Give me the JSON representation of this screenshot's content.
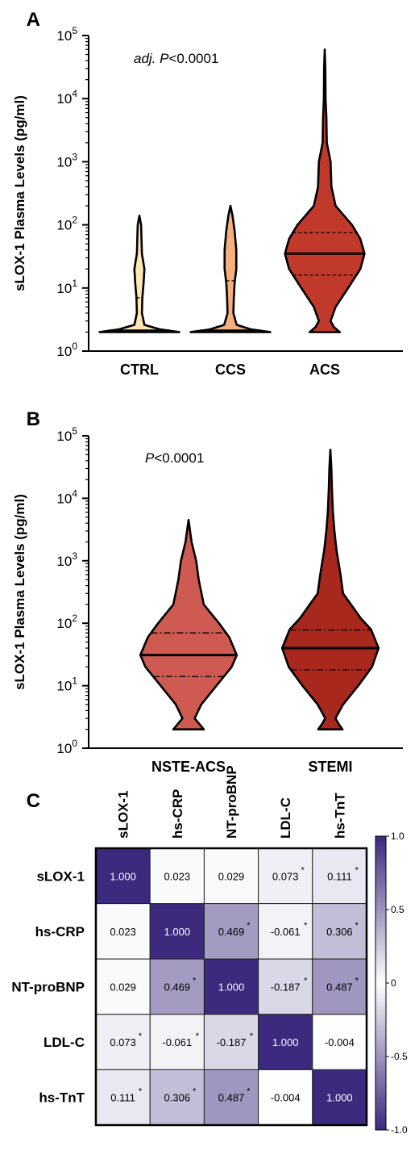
{
  "chart_data": [
    {
      "panel": "A",
      "type": "violin",
      "ylabel": "sLOX-1 Plasma Levels (pg/ml)",
      "yscale": "log",
      "ylim": [
        1,
        100000
      ],
      "yticks": [
        {
          "base": "10",
          "exp": "0",
          "value": 1
        },
        {
          "base": "10",
          "exp": "1",
          "value": 10
        },
        {
          "base": "10",
          "exp": "2",
          "value": 100
        },
        {
          "base": "10",
          "exp": "3",
          "value": 1000
        },
        {
          "base": "10",
          "exp": "4",
          "value": 10000
        },
        {
          "base": "10",
          "exp": "5",
          "value": 100000
        }
      ],
      "annotation": {
        "italic": "adj. P",
        "rest": "<0.0001"
      },
      "categories": [
        "CTRL",
        "CCS",
        "ACS"
      ],
      "series": [
        {
          "category": "CTRL",
          "color": "#fde8b4",
          "min": 2,
          "max": 140,
          "median": 2.1,
          "q1": 2,
          "q3": 7,
          "shape": [
            [
              2,
              0.95
            ],
            [
              2.2,
              0.5
            ],
            [
              2.6,
              0.12
            ],
            [
              4,
              0.06
            ],
            [
              7,
              0.07
            ],
            [
              12,
              0.1
            ],
            [
              20,
              0.12
            ],
            [
              35,
              0.06
            ],
            [
              60,
              0.05
            ],
            [
              100,
              0.04
            ],
            [
              140,
              0
            ]
          ]
        },
        {
          "category": "CCS",
          "color": "#f4b07c",
          "min": 2,
          "max": 200,
          "median": 2.1,
          "q1": 2,
          "q3": 13,
          "shape": [
            [
              2,
              0.95
            ],
            [
              2.2,
              0.5
            ],
            [
              2.6,
              0.15
            ],
            [
              4,
              0.07
            ],
            [
              7,
              0.08
            ],
            [
              12,
              0.1
            ],
            [
              20,
              0.14
            ],
            [
              40,
              0.14
            ],
            [
              80,
              0.1
            ],
            [
              140,
              0.05
            ],
            [
              200,
              0
            ]
          ]
        },
        {
          "category": "ACS",
          "color": "#c0392b",
          "min": 2,
          "max": 60000,
          "median": 35,
          "q1": 16,
          "q3": 75,
          "shape": [
            [
              2,
              0.36
            ],
            [
              2.4,
              0.22
            ],
            [
              3,
              0.14
            ],
            [
              5,
              0.26
            ],
            [
              10,
              0.56
            ],
            [
              20,
              0.85
            ],
            [
              35,
              0.95
            ],
            [
              60,
              0.85
            ],
            [
              100,
              0.65
            ],
            [
              200,
              0.26
            ],
            [
              400,
              0.16
            ],
            [
              1000,
              0.14
            ],
            [
              2000,
              0.05
            ],
            [
              5000,
              0.04
            ],
            [
              10000,
              0.02
            ],
            [
              30000,
              0.015
            ],
            [
              60000,
              0
            ]
          ]
        }
      ]
    },
    {
      "panel": "B",
      "type": "violin",
      "ylabel": "sLOX-1 Plasma Levels (pg/ml)",
      "yscale": "log",
      "ylim": [
        1,
        100000
      ],
      "yticks": [
        {
          "base": "10",
          "exp": "0",
          "value": 1
        },
        {
          "base": "10",
          "exp": "1",
          "value": 10
        },
        {
          "base": "10",
          "exp": "2",
          "value": 100
        },
        {
          "base": "10",
          "exp": "3",
          "value": 1000
        },
        {
          "base": "10",
          "exp": "4",
          "value": 10000
        },
        {
          "base": "10",
          "exp": "5",
          "value": 100000
        }
      ],
      "annotation": {
        "italic": "P",
        "rest": "<0.0001"
      },
      "categories": [
        "NSTE-ACS",
        "STEMI"
      ],
      "series": [
        {
          "category": "NSTE-ACS",
          "color": "#cf5a52",
          "min": 2,
          "max": 4500,
          "median": 31,
          "q1": 14,
          "q3": 70,
          "shape": [
            [
              2,
              0.3
            ],
            [
              2.4,
              0.22
            ],
            [
              3,
              0.12
            ],
            [
              5,
              0.25
            ],
            [
              10,
              0.55
            ],
            [
              20,
              0.85
            ],
            [
              31,
              0.95
            ],
            [
              60,
              0.8
            ],
            [
              100,
              0.6
            ],
            [
              200,
              0.3
            ],
            [
              500,
              0.2
            ],
            [
              1000,
              0.15
            ],
            [
              2000,
              0.06
            ],
            [
              4500,
              0
            ]
          ]
        },
        {
          "category": "STEMI",
          "color": "#a8281e",
          "min": 2,
          "max": 60000,
          "median": 40,
          "q1": 18,
          "q3": 78,
          "shape": [
            [
              2,
              0.24
            ],
            [
              2.4,
              0.17
            ],
            [
              3,
              0.1
            ],
            [
              5,
              0.25
            ],
            [
              10,
              0.55
            ],
            [
              20,
              0.82
            ],
            [
              40,
              0.95
            ],
            [
              80,
              0.8
            ],
            [
              120,
              0.6
            ],
            [
              300,
              0.25
            ],
            [
              600,
              0.2
            ],
            [
              1500,
              0.12
            ],
            [
              3000,
              0.08
            ],
            [
              6000,
              0.05
            ],
            [
              15000,
              0.03
            ],
            [
              30000,
              0.02
            ],
            [
              60000,
              0
            ]
          ]
        }
      ]
    },
    {
      "panel": "C",
      "type": "heatmap",
      "labels": [
        "sLOX-1",
        "hs-CRP",
        "NT-proBNP",
        "LDL-C",
        "hs-TnT"
      ],
      "values": [
        [
          1.0,
          0.023,
          0.029,
          0.073,
          0.111
        ],
        [
          0.023,
          1.0,
          0.469,
          -0.061,
          0.306
        ],
        [
          0.029,
          0.469,
          1.0,
          -0.187,
          0.487
        ],
        [
          0.073,
          -0.061,
          -0.187,
          1.0,
          -0.004
        ],
        [
          0.111,
          0.306,
          0.487,
          -0.004,
          1.0
        ]
      ],
      "cell_text": [
        [
          "1.000",
          "0.023",
          "0.029",
          "0.073",
          "0.111"
        ],
        [
          "0.023",
          "1.000",
          "0.469",
          "-0.061",
          "0.306"
        ],
        [
          "0.029",
          "0.469",
          "1.000",
          "-0.187",
          "0.487"
        ],
        [
          "0.073",
          "-0.061",
          "-0.187",
          "1.000",
          "-0.004"
        ],
        [
          "0.111",
          "0.306",
          "0.487",
          "-0.004",
          "1.000"
        ]
      ],
      "significant": [
        [
          false,
          false,
          false,
          true,
          true
        ],
        [
          false,
          false,
          true,
          true,
          true
        ],
        [
          false,
          true,
          false,
          true,
          true
        ],
        [
          true,
          true,
          true,
          false,
          false
        ],
        [
          true,
          true,
          true,
          false,
          false
        ]
      ],
      "significance_mark": "*",
      "colorbar": {
        "range": [
          -1,
          1
        ],
        "low_color": "#3b2a7e",
        "mid_color": "#ffffff",
        "high_color": "#3b2a7e",
        "ticks": [
          {
            "label": "1.0",
            "value": 1
          },
          {
            "label": "0.5",
            "value": 0.5
          },
          {
            "label": "0",
            "value": 0
          },
          {
            "label": "-0.5",
            "value": -0.5
          },
          {
            "label": "-1.0",
            "value": -1
          }
        ]
      }
    }
  ]
}
